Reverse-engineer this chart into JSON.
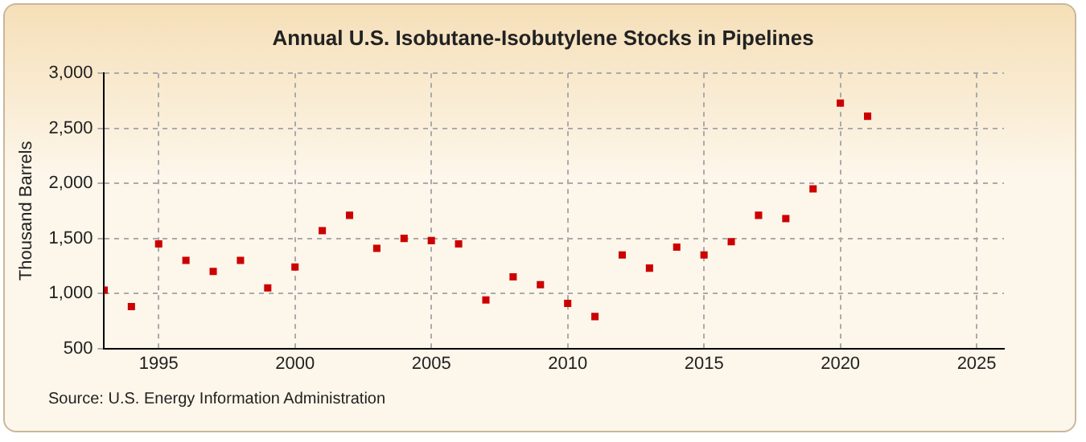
{
  "chart_data": {
    "type": "scatter",
    "title": "Annual U.S. Isobutane-Isobutylene Stocks in Pipelines",
    "ylabel": "Thousand Barrels",
    "x": [
      1993,
      1994,
      1995,
      1996,
      1997,
      1998,
      1999,
      2000,
      2001,
      2002,
      2003,
      2004,
      2005,
      2006,
      2007,
      2008,
      2009,
      2010,
      2011,
      2012,
      2013,
      2014,
      2015,
      2016,
      2017,
      2018,
      2019,
      2020,
      2021
    ],
    "series": [
      {
        "color": "#cc0000",
        "values": [
          1030,
          880,
          1450,
          1300,
          1200,
          1300,
          1050,
          1240,
          1570,
          1710,
          1410,
          1500,
          1480,
          1450,
          940,
          1150,
          1080,
          910,
          790,
          1350,
          1230,
          1420,
          1350,
          1470,
          1710,
          1680,
          1950,
          2730,
          2610
        ]
      }
    ],
    "xlim": [
      1993,
      2026
    ],
    "xticks": [
      1995,
      2000,
      2005,
      2010,
      2015,
      2020,
      2025
    ],
    "ylim": [
      500,
      3000
    ],
    "yticks": [
      {
        "value": 500,
        "label": "500"
      },
      {
        "value": 1000,
        "label": "1,000"
      },
      {
        "value": 1500,
        "label": "1,500"
      },
      {
        "value": 2000,
        "label": "2,000"
      },
      {
        "value": 2500,
        "label": "2,500"
      },
      {
        "value": 3000,
        "label": "3,000"
      }
    ],
    "grid": true,
    "marker": "square",
    "legend": false,
    "annotations": [
      "Source: U.S. Energy Information Administration"
    ]
  }
}
